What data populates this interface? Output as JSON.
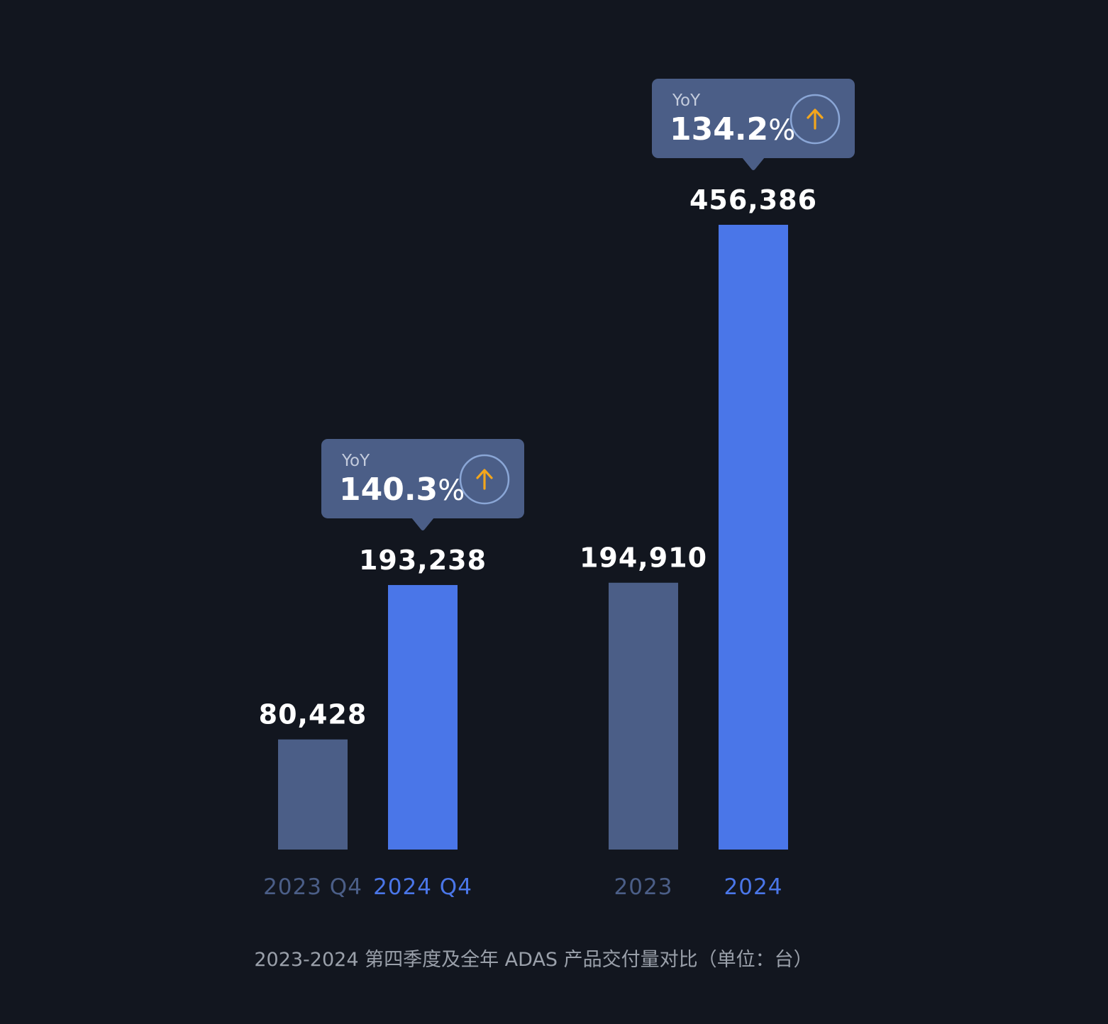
{
  "colors": {
    "background": "#12161f",
    "bar_prior": "#4b5e87",
    "bar_current": "#4a76e8",
    "label_prior": "#4b5e87",
    "label_current": "#4a76e8",
    "callout_bg": "#4b5e87",
    "arrow_icon": "#f3a61c",
    "caption": "#9aa0aa"
  },
  "chart_data": {
    "type": "bar",
    "categories": [
      "2023 Q4",
      "2024 Q4",
      "2023",
      "2024"
    ],
    "values": [
      80428,
      193238,
      194910,
      456386
    ],
    "value_labels": [
      "80,428",
      "193,238",
      "194,910",
      "456,386"
    ],
    "groups": [
      {
        "categories": [
          "2023 Q4",
          "2024 Q4"
        ]
      },
      {
        "categories": [
          "2023",
          "2024"
        ]
      }
    ],
    "callouts": [
      {
        "category": "2024 Q4",
        "label": "YoY",
        "value": "140.3",
        "unit": "%",
        "icon": "arrow-up-icon"
      },
      {
        "category": "2024",
        "label": "YoY",
        "value": "134.2",
        "unit": "%",
        "icon": "arrow-up-icon"
      }
    ],
    "title": "2023-2024 第四季度及全年 ADAS 产品交付量对比（单位：台）",
    "xlabel": "",
    "ylabel": "",
    "grid": false,
    "legend": "none"
  }
}
